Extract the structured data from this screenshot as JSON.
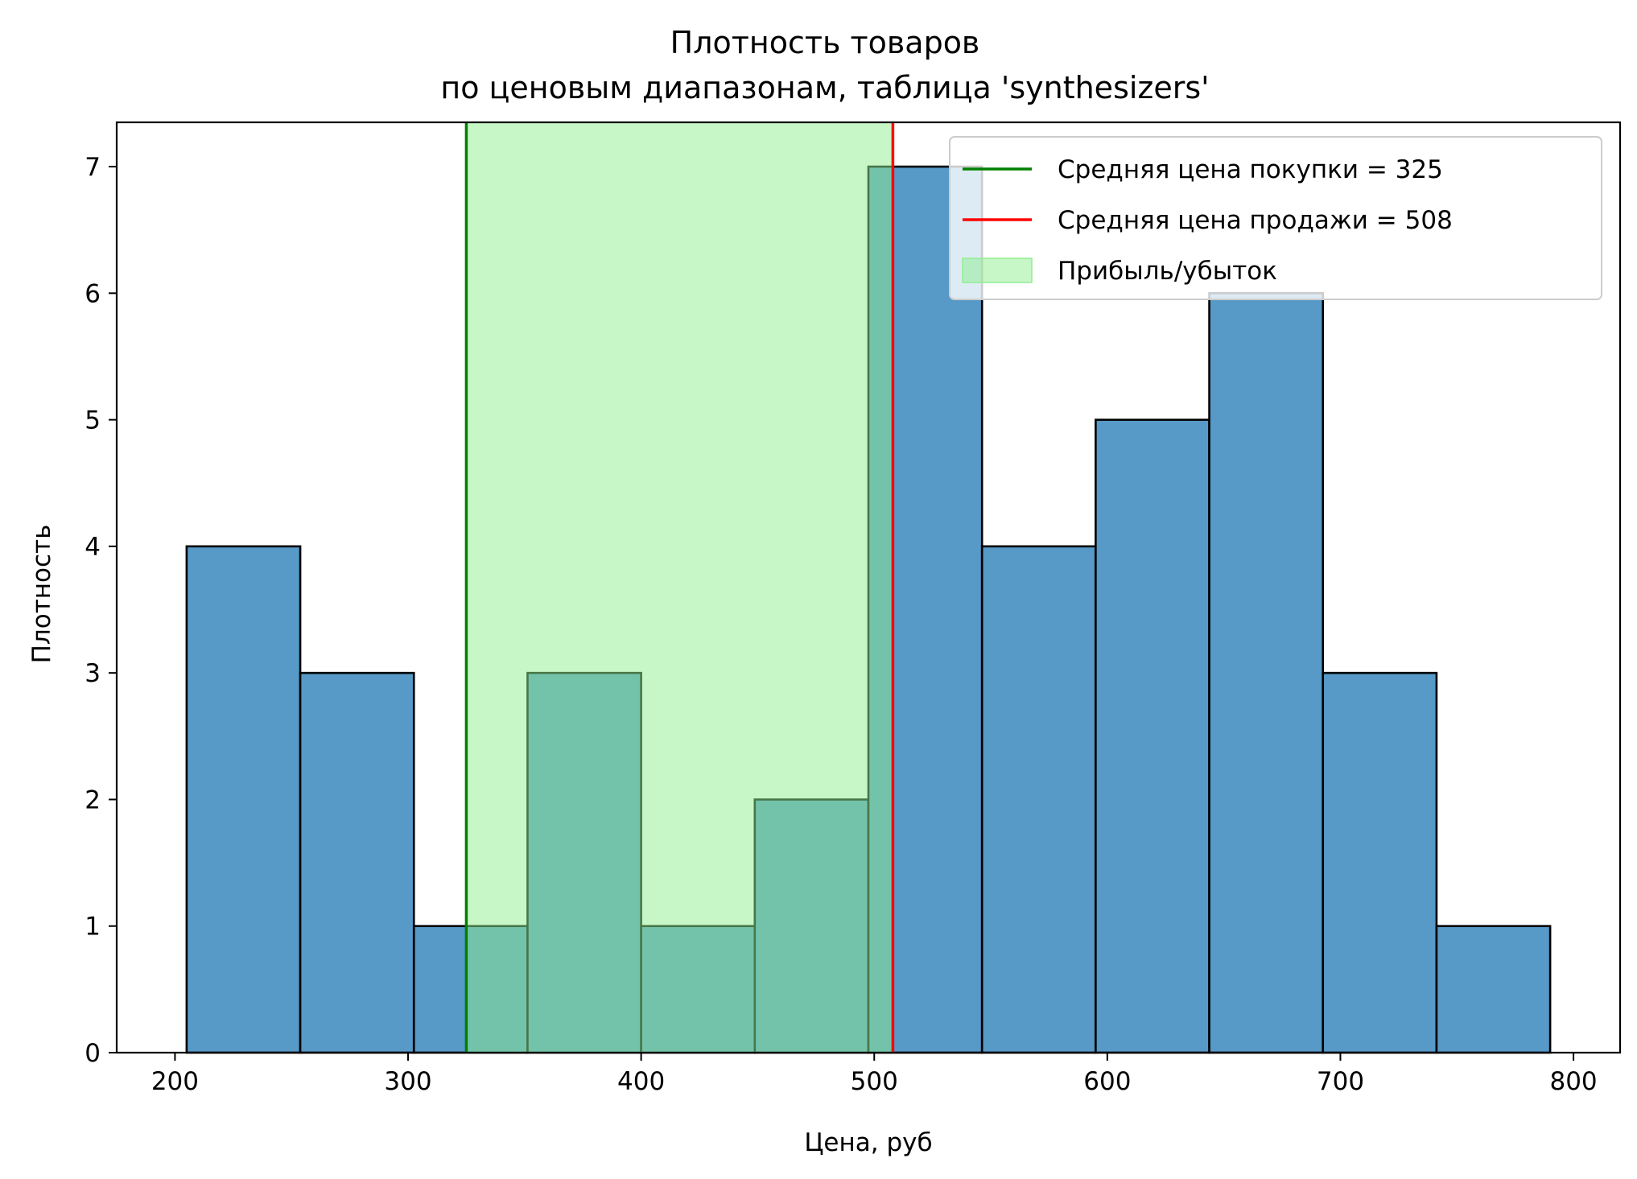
{
  "chart_data": {
    "type": "bar",
    "title": [
      "Плотность товаров",
      "по ценовым диапазонам, таблица 'synthesizers'"
    ],
    "xlabel": "Цена, руб",
    "ylabel": "Плотность",
    "xlim": [
      175,
      820
    ],
    "ylim": [
      0,
      7.35
    ],
    "xticks": [
      200,
      300,
      400,
      500,
      600,
      700,
      800
    ],
    "yticks": [
      0,
      1,
      2,
      3,
      4,
      5,
      6,
      7
    ],
    "bins": [
      {
        "x0": 205,
        "x1": 253.75,
        "value": 4
      },
      {
        "x0": 253.75,
        "x1": 302.5,
        "value": 3
      },
      {
        "x0": 302.5,
        "x1": 351.25,
        "value": 1
      },
      {
        "x0": 351.25,
        "x1": 400,
        "value": 3
      },
      {
        "x0": 400,
        "x1": 448.75,
        "value": 1
      },
      {
        "x0": 448.75,
        "x1": 497.5,
        "value": 2
      },
      {
        "x0": 497.5,
        "x1": 546.25,
        "value": 7
      },
      {
        "x0": 546.25,
        "x1": 595,
        "value": 4
      },
      {
        "x0": 595,
        "x1": 643.75,
        "value": 5
      },
      {
        "x0": 643.75,
        "x1": 692.5,
        "value": 6
      },
      {
        "x0": 692.5,
        "x1": 741.25,
        "value": 3
      },
      {
        "x0": 741.25,
        "x1": 790,
        "value": 1
      }
    ],
    "vlines": [
      {
        "x": 325,
        "label": "Средняя цена покупки = 325",
        "color": "#008000"
      },
      {
        "x": 508,
        "label": "Средняя цена продажи = 508",
        "color": "#ff0000"
      }
    ],
    "span": {
      "x0": 325,
      "x1": 508,
      "label": "Прибыль/убыток",
      "color": "#90ee90"
    },
    "bar_color": "#5799c7",
    "legend_position": "upper right",
    "grid": false
  }
}
